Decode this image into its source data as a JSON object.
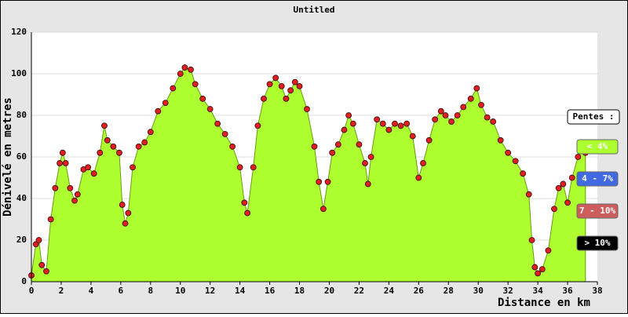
{
  "chart_data": {
    "type": "area",
    "title": "Untitled",
    "x_label": "Distance en km",
    "y_label": "Dénivelé en metres",
    "xlim": [
      0,
      38
    ],
    "ylim": [
      0,
      120
    ],
    "xticks": [
      0,
      2,
      4,
      6,
      8,
      10,
      12,
      14,
      16,
      18,
      20,
      22,
      24,
      26,
      28,
      30,
      32,
      34,
      36,
      38
    ],
    "yticks": [
      0,
      20,
      40,
      60,
      80,
      100,
      120
    ],
    "grid": true,
    "x": [
      0,
      0.3,
      0.5,
      0.7,
      1.0,
      1.3,
      1.6,
      1.9,
      2.1,
      2.3,
      2.6,
      2.9,
      3.1,
      3.5,
      3.8,
      4.2,
      4.6,
      4.9,
      5.1,
      5.5,
      5.9,
      6.1,
      6.3,
      6.5,
      6.8,
      7.2,
      7.6,
      8.0,
      8.5,
      9.0,
      9.5,
      10.0,
      10.3,
      10.7,
      11.0,
      11.5,
      12.0,
      12.5,
      13.0,
      13.5,
      14.0,
      14.3,
      14.5,
      14.9,
      15.2,
      15.6,
      16.0,
      16.4,
      16.8,
      17.1,
      17.4,
      17.7,
      18.0,
      18.5,
      19.0,
      19.3,
      19.6,
      19.9,
      20.2,
      20.6,
      21.0,
      21.3,
      21.6,
      22.0,
      22.4,
      22.6,
      22.8,
      23.2,
      23.6,
      24.0,
      24.4,
      24.8,
      25.2,
      25.6,
      26.0,
      26.3,
      26.7,
      27.1,
      27.5,
      27.8,
      28.2,
      28.6,
      29.0,
      29.5,
      29.9,
      30.2,
      30.6,
      31.0,
      31.5,
      32.0,
      32.5,
      33.0,
      33.4,
      33.6,
      33.8,
      34.0,
      34.3,
      34.7,
      35.1,
      35.4,
      35.7,
      36.0,
      36.3,
      36.7,
      37.0,
      37.2
    ],
    "series": [
      {
        "color": "#adff2f",
        "point_color": "#e02020",
        "values": [
          3,
          18,
          20,
          8,
          5,
          30,
          45,
          57,
          62,
          57,
          45,
          39,
          42,
          54,
          55,
          52,
          62,
          75,
          68,
          65,
          62,
          37,
          28,
          33,
          55,
          65,
          67,
          72,
          82,
          86,
          93,
          100,
          103,
          102,
          95,
          88,
          83,
          76,
          71,
          65,
          55,
          38,
          33,
          55,
          75,
          88,
          95,
          98,
          94,
          88,
          92,
          96,
          94,
          83,
          65,
          48,
          35,
          48,
          62,
          66,
          73,
          80,
          76,
          66,
          57,
          47,
          60,
          78,
          76,
          73,
          76,
          75,
          76,
          70,
          50,
          57,
          68,
          78,
          82,
          80,
          77,
          80,
          84,
          88,
          93,
          85,
          79,
          77,
          68,
          62,
          58,
          52,
          42,
          20,
          7,
          4,
          6,
          15,
          35,
          45,
          47,
          38,
          50,
          60,
          64,
          62
        ]
      }
    ],
    "legend": {
      "title": "Pentes :",
      "items": [
        {
          "label": "< 4%",
          "color": "#adff2f"
        },
        {
          "label": "4 - 7%",
          "color": "#4169e1"
        },
        {
          "label": "7 - 10%",
          "color": "#cd5c5c"
        },
        {
          "label": "> 10%",
          "color": "#000000"
        }
      ]
    }
  }
}
